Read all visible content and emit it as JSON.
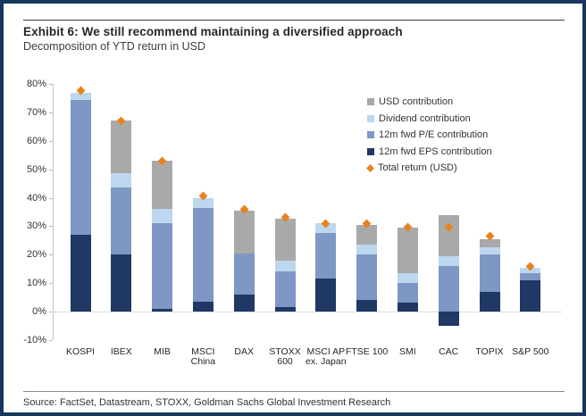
{
  "header": {
    "title": "Exhibit 6: We still recommend maintaining a diversified approach",
    "subtitle": "Decomposition of YTD return in USD"
  },
  "footer": {
    "source": "Source: FactSet, Datastream, STOXX, Goldman Sachs Global Investment Research"
  },
  "colors": {
    "frame_border": "#17375E",
    "eps": "#1F3864",
    "pe": "#7E97C5",
    "dividend": "#BDD7EE",
    "usd": "#A9A9A9",
    "total_marker": "#E8821E"
  },
  "legend": [
    {
      "label": "USD contribution",
      "color": "#A9A9A9",
      "shape": "square"
    },
    {
      "label": "Dividend contribution",
      "color": "#BDD7EE",
      "shape": "square"
    },
    {
      "label": "12m fwd P/E contribution",
      "color": "#7E97C5",
      "shape": "square"
    },
    {
      "label": "12m fwd EPS contribution",
      "color": "#1F3864",
      "shape": "square"
    },
    {
      "label": "Total return (USD)",
      "color": "#E8821E",
      "shape": "diamond"
    }
  ],
  "chart_data": {
    "type": "bar",
    "stacked": true,
    "title": "Decomposition of YTD return in USD",
    "categories": [
      "KOSPI",
      "IBEX",
      "MIB",
      "MSCI China",
      "DAX",
      "STOXX 600",
      "MSCI AP ex. Japan",
      "FTSE 100",
      "SMI",
      "CAC",
      "TOPIX",
      "S&P 500"
    ],
    "category_lines": [
      [
        "KOSPI"
      ],
      [
        "IBEX"
      ],
      [
        "MIB"
      ],
      [
        "MSCI",
        "China"
      ],
      [
        "DAX"
      ],
      [
        "STOXX",
        "600"
      ],
      [
        "MSCI AP",
        "ex. Japan"
      ],
      [
        "FTSE 100"
      ],
      [
        "SMI"
      ],
      [
        "CAC"
      ],
      [
        "TOPIX"
      ],
      [
        "S&P 500"
      ]
    ],
    "series": [
      {
        "name": "12m fwd EPS contribution",
        "key": "eps",
        "color": "#1F3864",
        "values": [
          27,
          20,
          1,
          3.5,
          6,
          1.5,
          11.5,
          4,
          3,
          -5,
          7,
          11
        ]
      },
      {
        "name": "12m fwd P/E contribution",
        "key": "pe",
        "color": "#7E97C5",
        "values": [
          47.5,
          23.5,
          30,
          33,
          14.5,
          12.5,
          16,
          16,
          7,
          16,
          13,
          2.5
        ]
      },
      {
        "name": "Dividend contribution",
        "key": "dividend",
        "color": "#BDD7EE",
        "values": [
          2.5,
          5,
          5,
          3.5,
          0,
          4,
          3.5,
          3.5,
          3.5,
          3.5,
          2.5,
          2
        ]
      },
      {
        "name": "USD contribution",
        "key": "usd",
        "color": "#A9A9A9",
        "values": [
          0,
          18.5,
          17,
          0,
          15,
          14.5,
          0,
          7,
          16,
          14.5,
          3,
          0
        ]
      }
    ],
    "total_marker": {
      "name": "Total return (USD)",
      "color": "#E8821E",
      "values": [
        77.5,
        67,
        53,
        40.5,
        36,
        33,
        31,
        31,
        29.5,
        29.5,
        26.5,
        16
      ]
    },
    "ylim": [
      -10,
      80
    ],
    "yticks": [
      {
        "value": 80,
        "label": "80%"
      },
      {
        "value": 70,
        "label": "70%"
      },
      {
        "value": 60,
        "label": "60%"
      },
      {
        "value": 50,
        "label": "50%"
      },
      {
        "value": 40,
        "label": "40%"
      },
      {
        "value": 30,
        "label": "30%"
      },
      {
        "value": 20,
        "label": "20%"
      },
      {
        "value": 10,
        "label": "10%"
      },
      {
        "value": 0,
        "label": "0%"
      },
      {
        "value": -10,
        "label": "-10%"
      }
    ],
    "grid": "zero-line-only",
    "legend_position": "top-right-inside"
  }
}
